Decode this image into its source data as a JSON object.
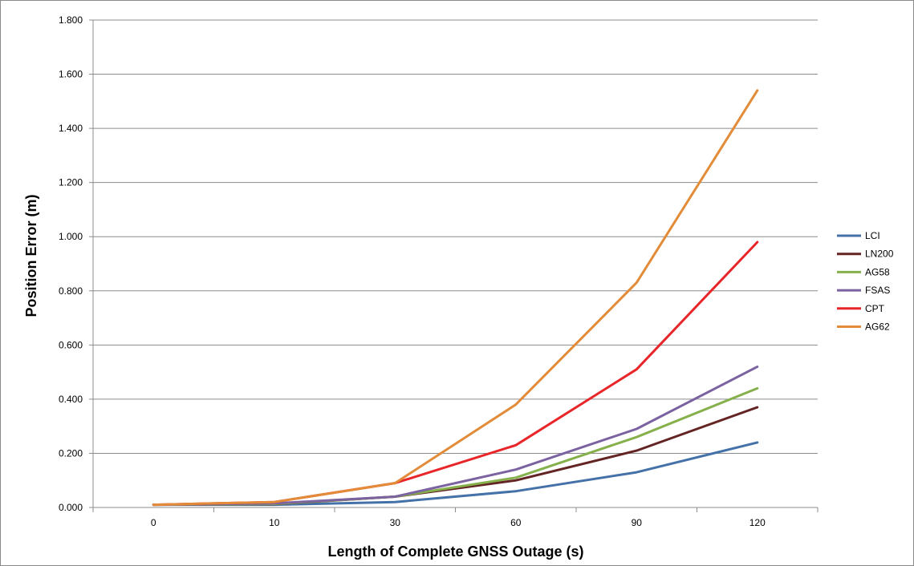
{
  "chart_data": {
    "type": "line",
    "title": "",
    "xlabel": "Length of Complete GNSS Outage (s)",
    "ylabel": "Position Error (m)",
    "categories": [
      "0",
      "10",
      "30",
      "60",
      "90",
      "120"
    ],
    "ylim": [
      0,
      1.8
    ],
    "yticks": [
      "0.000",
      "0.200",
      "0.400",
      "0.600",
      "0.800",
      "1.000",
      "1.200",
      "1.400",
      "1.600",
      "1.800"
    ],
    "grid": "horizontal",
    "legend_position": "right",
    "series": [
      {
        "name": "LCI",
        "color": "#4472A8",
        "values": [
          0.01,
          0.01,
          0.02,
          0.06,
          0.13,
          0.24
        ]
      },
      {
        "name": "LN200",
        "color": "#632423",
        "values": [
          0.01,
          0.012,
          0.04,
          0.1,
          0.21,
          0.37
        ]
      },
      {
        "name": "AG58",
        "color": "#86B04C",
        "values": [
          0.01,
          0.013,
          0.04,
          0.11,
          0.26,
          0.44
        ]
      },
      {
        "name": "FSAS",
        "color": "#7B62A0",
        "values": [
          0.01,
          0.015,
          0.04,
          0.14,
          0.29,
          0.52
        ]
      },
      {
        "name": "CPT",
        "color": "#E8262A",
        "values": [
          0.01,
          0.02,
          0.09,
          0.23,
          0.51,
          0.98
        ]
      },
      {
        "name": "AG62",
        "color": "#E28B38",
        "values": [
          0.01,
          0.02,
          0.09,
          0.38,
          0.83,
          1.54
        ]
      }
    ]
  }
}
